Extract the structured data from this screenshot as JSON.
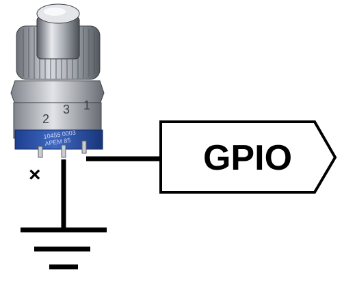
{
  "diagram": {
    "gpio_label": "GPIO",
    "unconnected_mark": "×",
    "switch": {
      "pin_numbers": [
        "2",
        "3",
        "1"
      ],
      "part_code_line1": "10455 0003",
      "part_code_line2": "APEM 85"
    },
    "colors": {
      "wire": "#000000",
      "tag_fill": "#ffffff",
      "tag_stroke": "#000000",
      "switch_body": "#2e56b0",
      "switch_metal": "#b9bcc2"
    }
  }
}
